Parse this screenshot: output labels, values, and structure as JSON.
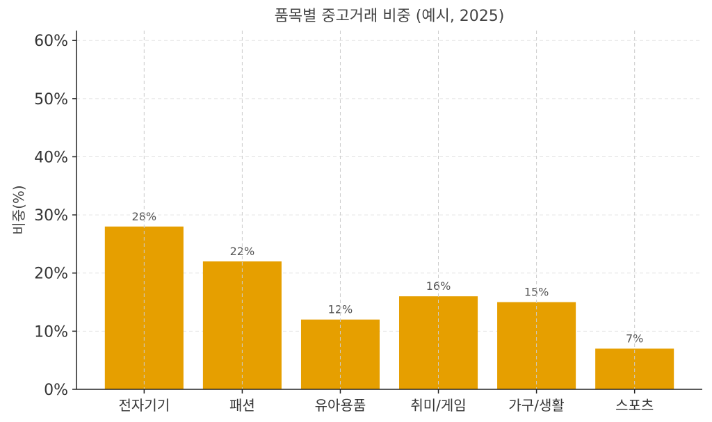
{
  "chart_data": {
    "type": "bar",
    "title": "품목별 중고거래 비중 (예시, 2025)",
    "xlabel": "",
    "ylabel": "비중(%)",
    "categories": [
      "전자기기",
      "패션",
      "유아용품",
      "취미/게임",
      "가구/생활",
      "스포츠"
    ],
    "values": [
      28,
      22,
      12,
      16,
      15,
      7
    ],
    "data_labels": [
      "28%",
      "22%",
      "12%",
      "16%",
      "15%",
      "7%"
    ],
    "yticks": [
      0,
      10,
      20,
      30,
      40,
      50,
      60
    ],
    "ytick_labels": [
      "0%",
      "10%",
      "20%",
      "30%",
      "40%",
      "50%",
      "60%"
    ],
    "ylim": [
      0,
      61.7
    ],
    "grid": true,
    "bar_color": "#E69F00"
  }
}
